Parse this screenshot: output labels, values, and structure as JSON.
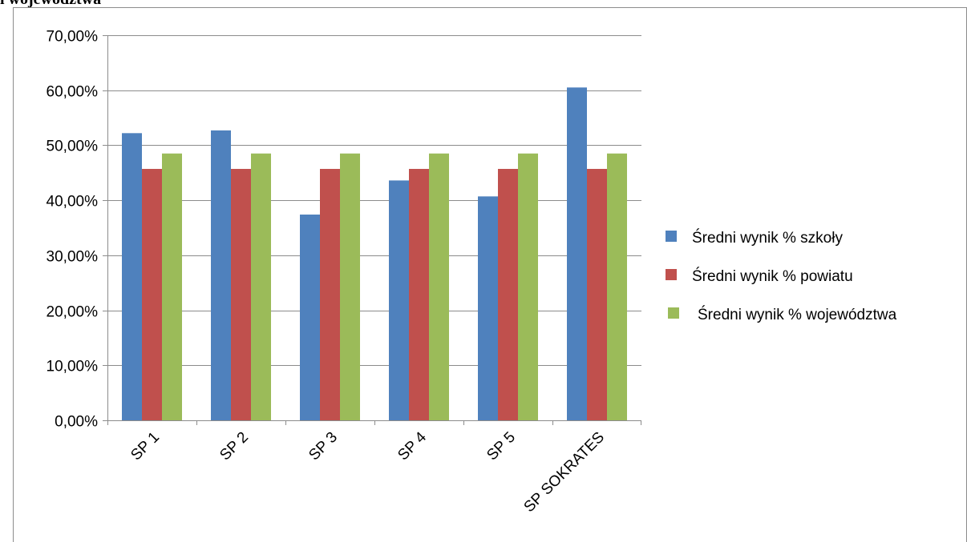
{
  "page": {
    "top_text": "i województwa"
  },
  "chart_data": {
    "type": "bar",
    "categories": [
      "SP 1",
      "SP 2",
      "SP 3",
      "SP 4",
      "SP 5",
      "SP SOKRATES"
    ],
    "series": [
      {
        "name": "Średni wynik % szkoły",
        "color": "#4F81BD",
        "values": [
          0.522,
          0.527,
          0.374,
          0.436,
          0.407,
          0.605
        ]
      },
      {
        "name": "Średni wynik % powiatu",
        "color": "#C0504D",
        "values": [
          0.457,
          0.457,
          0.457,
          0.457,
          0.457,
          0.457
        ]
      },
      {
        "name": "Średni wynik % województwa",
        "color": "#9BBB59",
        "values": [
          0.485,
          0.485,
          0.485,
          0.485,
          0.485,
          0.485
        ]
      }
    ],
    "ylim": [
      0,
      0.7
    ],
    "yticks": [
      "0,00%",
      "10,00%",
      "20,00%",
      "30,00%",
      "40,00%",
      "50,00%",
      "60,00%",
      "70,00%"
    ],
    "grid": true,
    "legend": "right"
  }
}
